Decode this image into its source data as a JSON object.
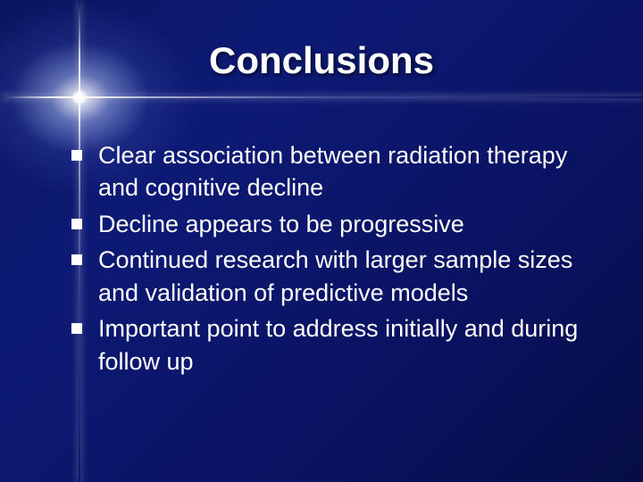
{
  "slide": {
    "title": "Conclusions",
    "title_fontsize": 42,
    "title_color": "#ffffff",
    "body_fontsize": 27,
    "body_color": "#ffffff",
    "background_gradient": [
      "#0a1560",
      "#0d1a75",
      "#0a1260",
      "#060d45"
    ],
    "flare_color": "#ffffff",
    "bullet_marker": "square",
    "bullet_marker_color": "#ffffff",
    "bullets": [
      "Clear association between radiation therapy and cognitive decline",
      "Decline appears to be progressive",
      "Continued research with larger sample sizes and validation of predictive models",
      "Important point to address initially and during follow up"
    ]
  }
}
